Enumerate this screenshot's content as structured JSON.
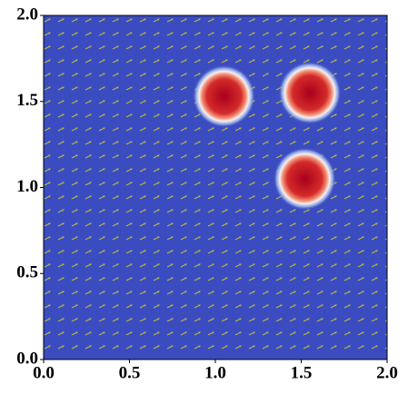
{
  "chart_data": {
    "type": "field",
    "x": [
      1.05,
      1.55,
      1.52
    ],
    "values": [
      1.53,
      1.55,
      1.05
    ],
    "sizes": [
      0.13,
      0.13,
      0.13
    ],
    "background_color": "#3b4cc0",
    "color": "#c0141f",
    "xlim": [
      0,
      2
    ],
    "ylim": [
      0,
      2
    ],
    "xticks": [
      {
        "value": 0,
        "label": "0.0"
      },
      0.5,
      {
        "value": 1,
        "label": "1.0"
      },
      1.5,
      {
        "value": 2,
        "label": "2.0"
      }
    ],
    "yticks": [
      {
        "value": 0,
        "label": "0.0"
      },
      0.5,
      {
        "value": 1,
        "label": "1.0"
      },
      1.5,
      {
        "value": 2,
        "label": "2.0"
      }
    ]
  }
}
